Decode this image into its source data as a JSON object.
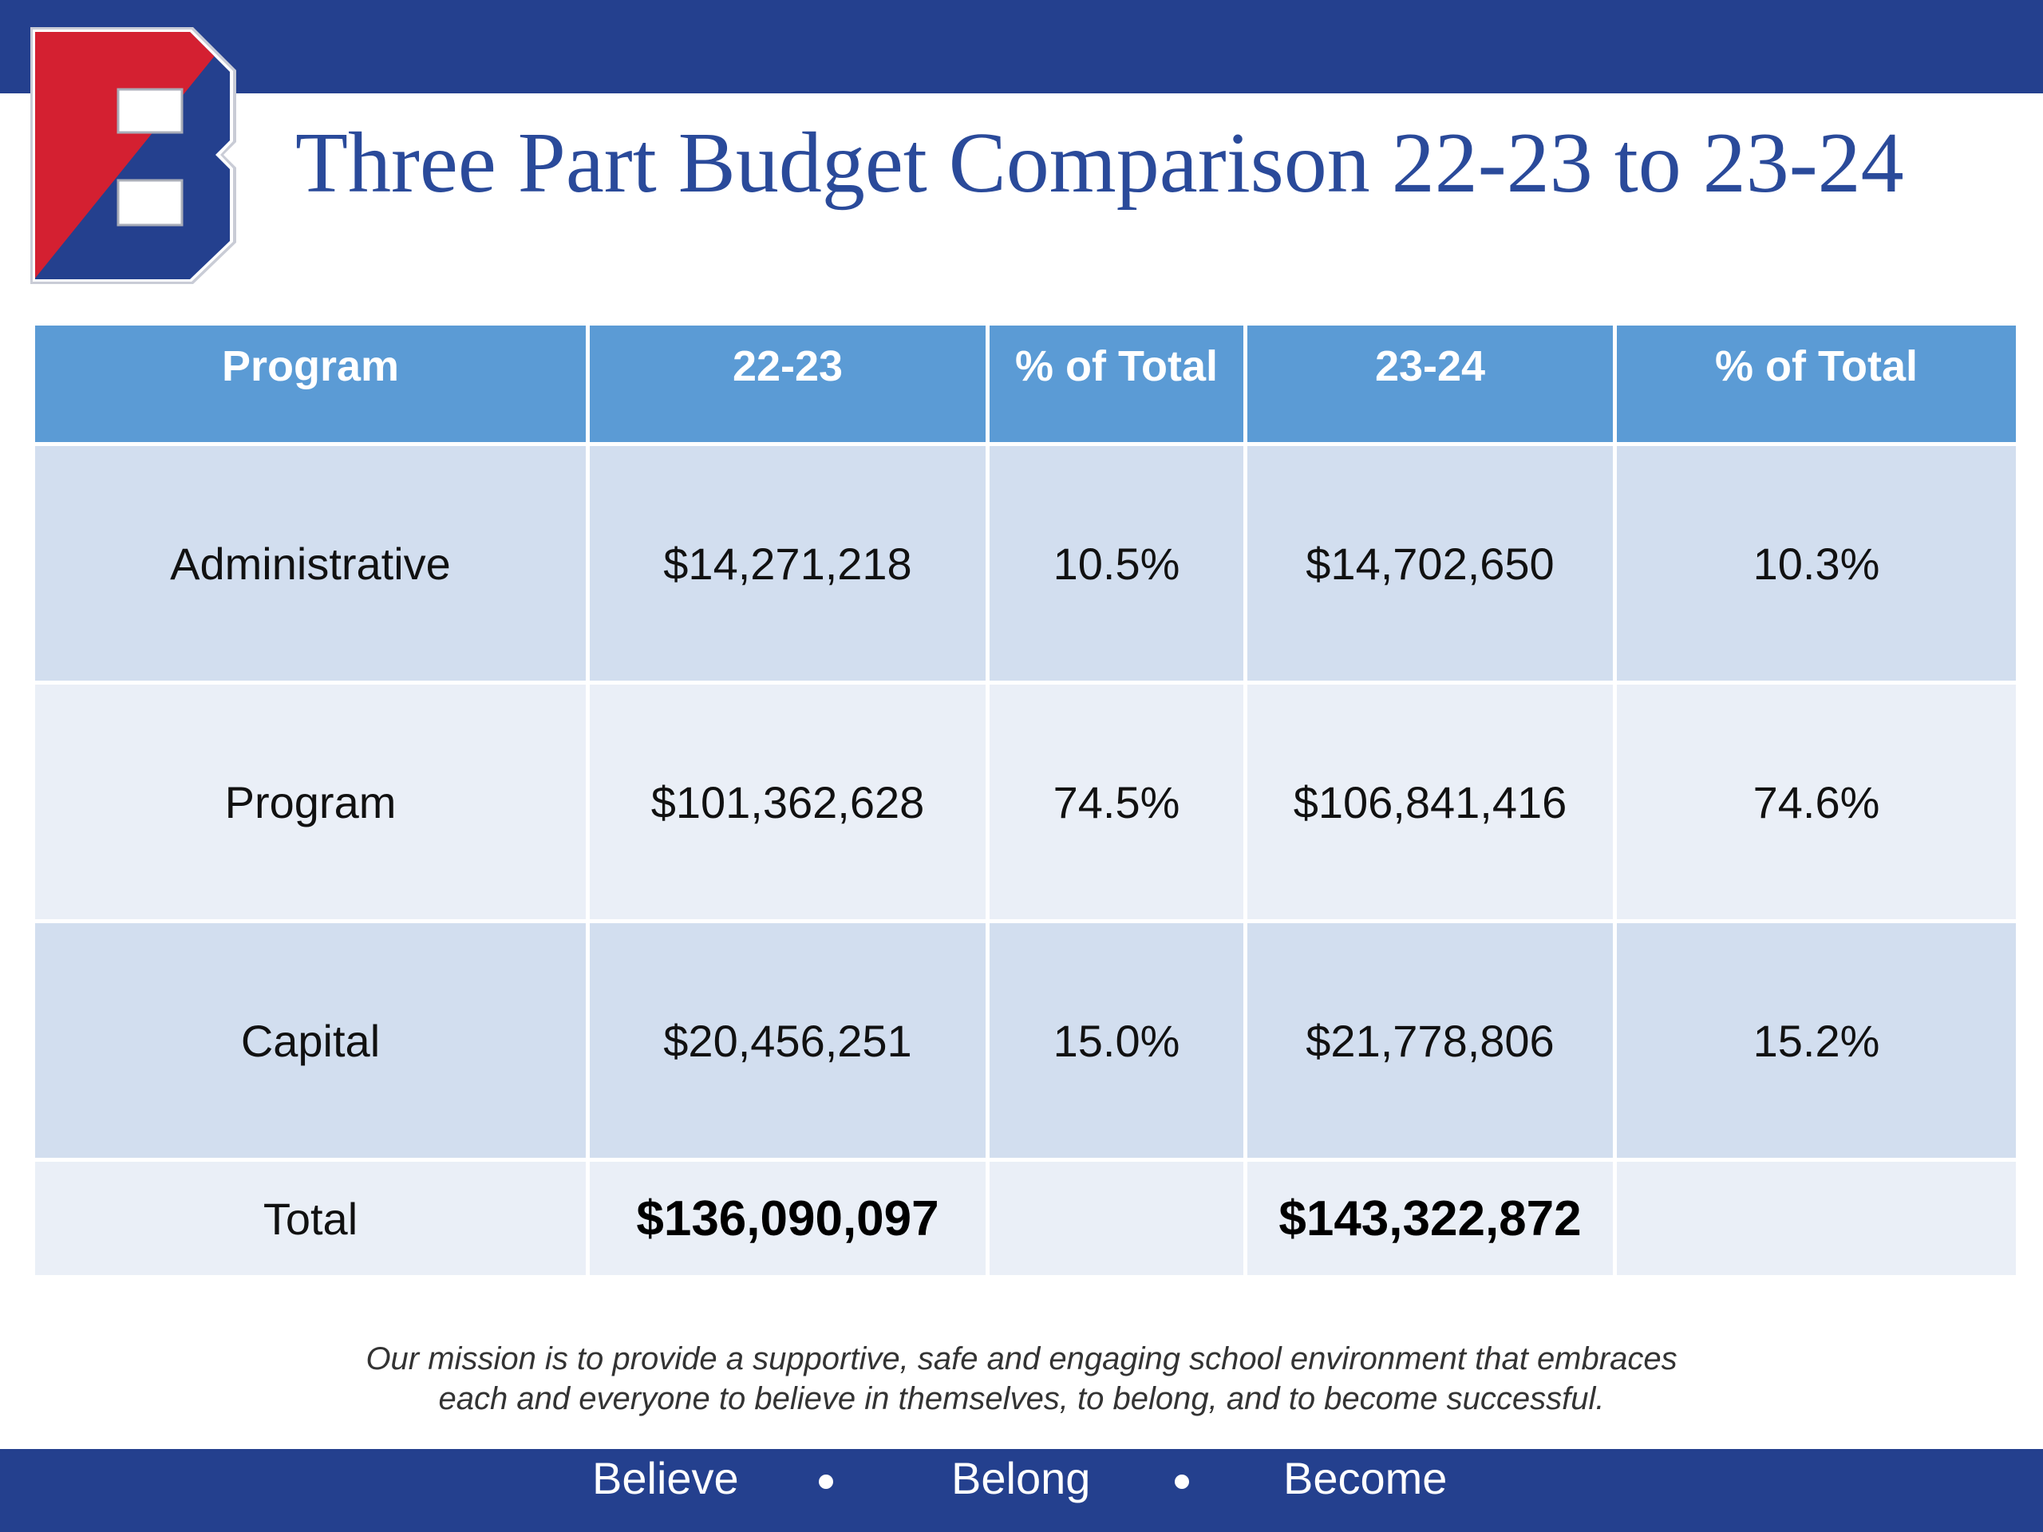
{
  "header": {
    "title": "Three Part Budget Comparison 22-23 to 23-24",
    "logo_letter": "B",
    "colors": {
      "navy": "#24408e",
      "red": "#d42031",
      "blue": "#2a4a9a"
    }
  },
  "table": {
    "columns": [
      "Program",
      "22-23",
      "% of Total",
      "23-24",
      "% of Total"
    ],
    "rows": [
      {
        "program": "Administrative",
        "y2223": "$14,271,218",
        "pct2223": "10.5%",
        "y2324": "$14,702,650",
        "pct2324": "10.3%"
      },
      {
        "program": "Program",
        "y2223": "$101,362,628",
        "pct2223": "74.5%",
        "y2324": "$106,841,416",
        "pct2324": "74.6%"
      },
      {
        "program": "Capital",
        "y2223": "$20,456,251",
        "pct2223": "15.0%",
        "y2324": "$21,778,806",
        "pct2324": "15.2%"
      }
    ],
    "total": {
      "label": "Total",
      "y2223": "$136,090,097",
      "y2324": "$143,322,872"
    }
  },
  "mission": {
    "line1": "Our mission is to provide a supportive, safe and engaging school environment that embraces",
    "line2": "each and everyone to believe in themselves, to belong, and to become successful."
  },
  "footer": {
    "motto": [
      "Believe",
      "Belong",
      "Become"
    ]
  }
}
